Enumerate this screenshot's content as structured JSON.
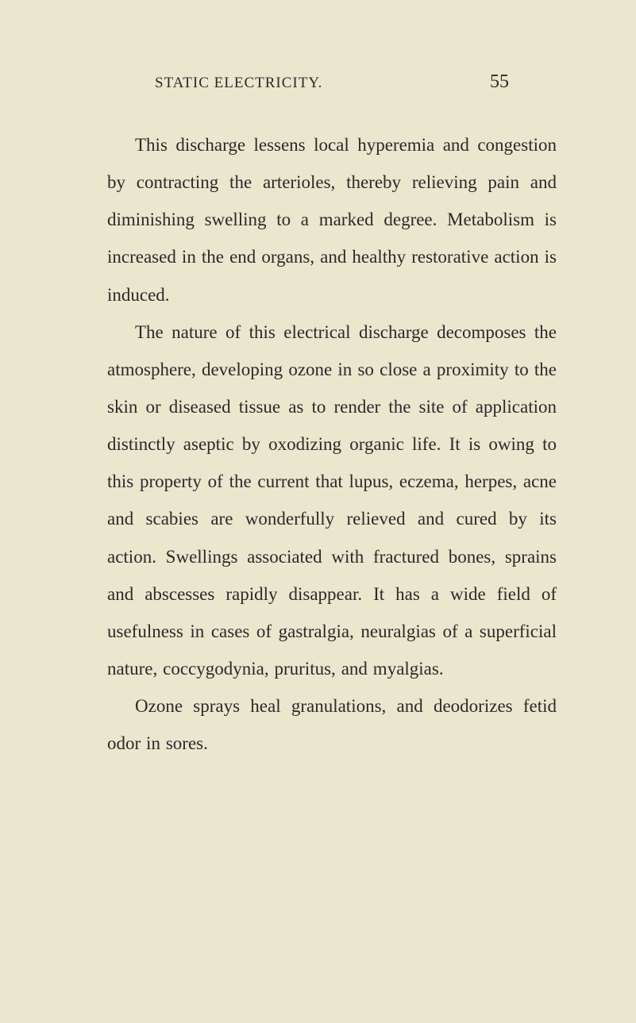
{
  "header": {
    "title": "STATIC ELECTRICITY.",
    "pageNumber": "55"
  },
  "paragraphs": {
    "p1": "This discharge lessens local hyperemia and congestion by contracting the arterioles, thereby relieving pain and diminishing swelling to a marked degree. Metabolism is increased in the end organs, and healthy restorative action is induced.",
    "p2": "The nature of this electrical discharge decomposes the atmosphere, developing ozone in so close a proximity to the skin or diseased tissue as to render the site of application distinctly aseptic by oxodizing organic life. It is owing to this property of the current that lupus, eczema, herpes, acne and scabies are wonderfully relieved and cured by its action. Swellings associated with fractured bones, sprains and abscesses rapidly disappear. It has a wide field of usefulness in cases of gastralgia, neuralgias of a superficial nature, coccygodynia, pruritus, and myalgias.",
    "p3": "Ozone sprays heal granulations, and deodorizes fetid odor in sores."
  },
  "colors": {
    "background": "#ebe6ce",
    "text": "#2a2a2a"
  },
  "typography": {
    "bodyFontSize": 23,
    "headerTitleFontSize": 19,
    "pageNumberFontSize": 24,
    "lineHeight": 2.05
  }
}
